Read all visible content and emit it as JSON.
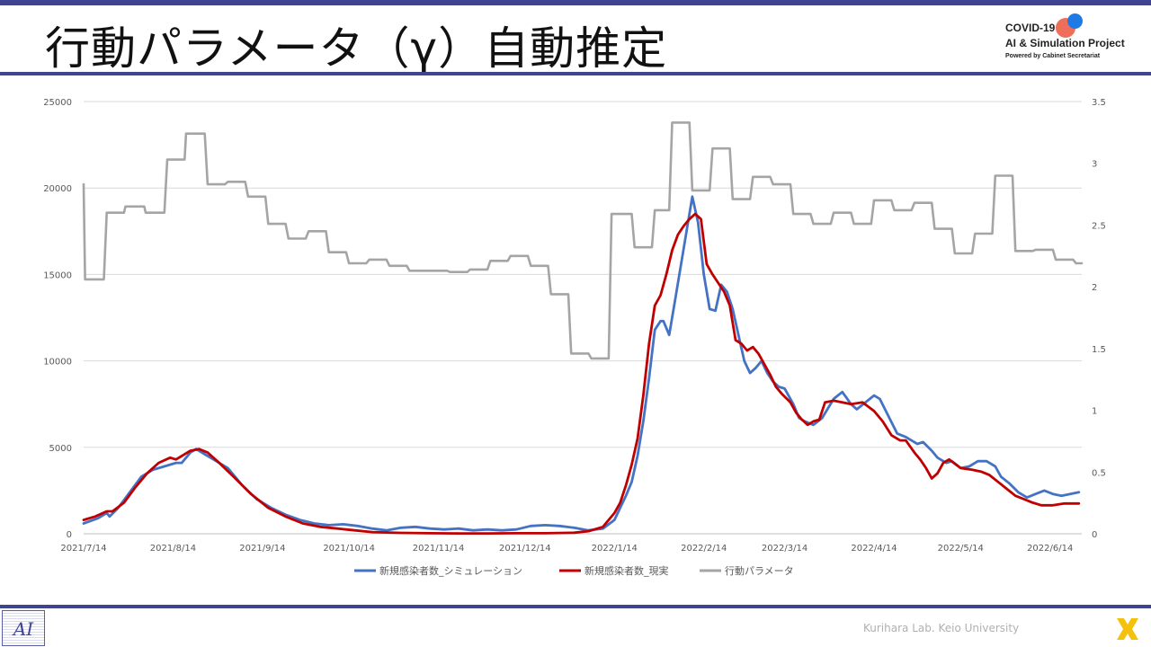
{
  "slide": {
    "title": "行動パラメータ（γ）自動推定",
    "logo_line1": "COVID-19",
    "logo_line2": "AI & Simulation Project",
    "logo_line3": "Powered by Cabinet Secretariat",
    "footer": "Kurihara Lab. Keio University"
  },
  "colors": {
    "accent_bar": "#3f4491",
    "simulation": "#4472c4",
    "actual": "#c00000",
    "parameter": "#a5a5a5"
  },
  "chart_data": {
    "type": "line",
    "x_labels": [
      "2021/7/14",
      "2021/8/14",
      "2021/9/14",
      "2021/10/14",
      "2021/11/14",
      "2021/12/14",
      "2022/1/14",
      "2022/2/14",
      "2022/3/14",
      "2022/4/14",
      "2022/5/14",
      "2022/6/14"
    ],
    "x_label_days": [
      0,
      31,
      62,
      92,
      123,
      153,
      184,
      215,
      243,
      274,
      304,
      335
    ],
    "x_range_days": [
      0,
      346
    ],
    "y_left": {
      "min": 0,
      "max": 25000,
      "ticks": [
        "0",
        "5000",
        "10000",
        "15000",
        "20000",
        "25000"
      ]
    },
    "y_right": {
      "min": 0,
      "max": 3.5,
      "ticks": [
        "0",
        "0.5",
        "1",
        "1.5",
        "2",
        "2.5",
        "3",
        "3.5"
      ]
    },
    "grid": true,
    "legend_position": "bottom",
    "series": [
      {
        "name": "新規感染者数_シミュレーション",
        "axis": "left",
        "color": "#4472c4",
        "points": [
          [
            0,
            600
          ],
          [
            5,
            900
          ],
          [
            8,
            1200
          ],
          [
            9,
            1000
          ],
          [
            12,
            1500
          ],
          [
            16,
            2400
          ],
          [
            20,
            3300
          ],
          [
            24,
            3700
          ],
          [
            28,
            3900
          ],
          [
            32,
            4100
          ],
          [
            34,
            4100
          ],
          [
            37,
            4700
          ],
          [
            39,
            4900
          ],
          [
            42,
            4600
          ],
          [
            46,
            4200
          ],
          [
            50,
            3800
          ],
          [
            55,
            2800
          ],
          [
            60,
            2000
          ],
          [
            65,
            1500
          ],
          [
            70,
            1100
          ],
          [
            75,
            800
          ],
          [
            80,
            600
          ],
          [
            85,
            500
          ],
          [
            90,
            550
          ],
          [
            95,
            450
          ],
          [
            100,
            300
          ],
          [
            105,
            200
          ],
          [
            110,
            350
          ],
          [
            115,
            400
          ],
          [
            120,
            300
          ],
          [
            125,
            250
          ],
          [
            130,
            300
          ],
          [
            135,
            200
          ],
          [
            140,
            250
          ],
          [
            145,
            200
          ],
          [
            150,
            250
          ],
          [
            155,
            450
          ],
          [
            160,
            500
          ],
          [
            165,
            450
          ],
          [
            170,
            350
          ],
          [
            175,
            200
          ],
          [
            180,
            300
          ],
          [
            184,
            800
          ],
          [
            186,
            1500
          ],
          [
            188,
            2200
          ],
          [
            190,
            3000
          ],
          [
            192,
            4500
          ],
          [
            194,
            6500
          ],
          [
            196,
            9000
          ],
          [
            198,
            11800
          ],
          [
            200,
            12300
          ],
          [
            201,
            12300
          ],
          [
            203,
            11500
          ],
          [
            205,
            13500
          ],
          [
            207,
            15500
          ],
          [
            209,
            17500
          ],
          [
            211,
            19500
          ],
          [
            213,
            18000
          ],
          [
            215,
            15000
          ],
          [
            217,
            13000
          ],
          [
            219,
            12900
          ],
          [
            221,
            14400
          ],
          [
            223,
            14000
          ],
          [
            225,
            13000
          ],
          [
            227,
            11500
          ],
          [
            229,
            10000
          ],
          [
            231,
            9300
          ],
          [
            233,
            9600
          ],
          [
            235,
            10000
          ],
          [
            237,
            9300
          ],
          [
            239,
            8800
          ],
          [
            241,
            8500
          ],
          [
            243,
            8400
          ],
          [
            246,
            7500
          ],
          [
            248,
            6700
          ],
          [
            250,
            6500
          ],
          [
            253,
            6300
          ],
          [
            256,
            6700
          ],
          [
            260,
            7800
          ],
          [
            263,
            8200
          ],
          [
            266,
            7500
          ],
          [
            268,
            7200
          ],
          [
            271,
            7600
          ],
          [
            274,
            8000
          ],
          [
            276,
            7800
          ],
          [
            279,
            6800
          ],
          [
            282,
            5800
          ],
          [
            285,
            5600
          ],
          [
            289,
            5200
          ],
          [
            291,
            5300
          ],
          [
            294,
            4800
          ],
          [
            296,
            4400
          ],
          [
            299,
            4100
          ],
          [
            301,
            4200
          ],
          [
            304,
            3800
          ],
          [
            307,
            3900
          ],
          [
            310,
            4200
          ],
          [
            313,
            4200
          ],
          [
            316,
            3900
          ],
          [
            318,
            3300
          ],
          [
            321,
            2900
          ],
          [
            324,
            2400
          ],
          [
            327,
            2100
          ],
          [
            330,
            2300
          ],
          [
            333,
            2500
          ],
          [
            336,
            2300
          ],
          [
            339,
            2200
          ],
          [
            342,
            2300
          ],
          [
            345,
            2400
          ]
        ]
      },
      {
        "name": "新規感染者数_現実",
        "axis": "left",
        "color": "#c00000",
        "points": [
          [
            0,
            800
          ],
          [
            4,
            1000
          ],
          [
            8,
            1300
          ],
          [
            10,
            1300
          ],
          [
            14,
            1800
          ],
          [
            18,
            2700
          ],
          [
            22,
            3500
          ],
          [
            26,
            4100
          ],
          [
            30,
            4400
          ],
          [
            32,
            4300
          ],
          [
            34,
            4500
          ],
          [
            37,
            4800
          ],
          [
            40,
            4900
          ],
          [
            43,
            4700
          ],
          [
            47,
            4100
          ],
          [
            52,
            3300
          ],
          [
            58,
            2300
          ],
          [
            64,
            1500
          ],
          [
            70,
            1000
          ],
          [
            76,
            600
          ],
          [
            82,
            400
          ],
          [
            88,
            300
          ],
          [
            94,
            200
          ],
          [
            100,
            100
          ],
          [
            110,
            50
          ],
          [
            120,
            30
          ],
          [
            130,
            20
          ],
          [
            140,
            20
          ],
          [
            150,
            30
          ],
          [
            160,
            30
          ],
          [
            170,
            60
          ],
          [
            175,
            150
          ],
          [
            180,
            400
          ],
          [
            184,
            1200
          ],
          [
            186,
            1800
          ],
          [
            188,
            2800
          ],
          [
            190,
            4000
          ],
          [
            192,
            5500
          ],
          [
            194,
            8000
          ],
          [
            196,
            11000
          ],
          [
            198,
            13200
          ],
          [
            200,
            13800
          ],
          [
            202,
            15000
          ],
          [
            204,
            16400
          ],
          [
            206,
            17300
          ],
          [
            208,
            17800
          ],
          [
            210,
            18200
          ],
          [
            212,
            18500
          ],
          [
            214,
            18200
          ],
          [
            216,
            15600
          ],
          [
            218,
            15000
          ],
          [
            220,
            14500
          ],
          [
            222,
            14000
          ],
          [
            224,
            13200
          ],
          [
            226,
            11200
          ],
          [
            228,
            11000
          ],
          [
            230,
            10600
          ],
          [
            232,
            10800
          ],
          [
            234,
            10400
          ],
          [
            236,
            9800
          ],
          [
            238,
            9200
          ],
          [
            240,
            8500
          ],
          [
            242,
            8100
          ],
          [
            245,
            7600
          ],
          [
            247,
            7000
          ],
          [
            249,
            6600
          ],
          [
            251,
            6300
          ],
          [
            253,
            6500
          ],
          [
            255,
            6600
          ],
          [
            257,
            7600
          ],
          [
            260,
            7700
          ],
          [
            263,
            7600
          ],
          [
            266,
            7500
          ],
          [
            270,
            7600
          ],
          [
            274,
            7100
          ],
          [
            277,
            6500
          ],
          [
            280,
            5700
          ],
          [
            283,
            5400
          ],
          [
            285,
            5400
          ],
          [
            288,
            4700
          ],
          [
            290,
            4300
          ],
          [
            292,
            3800
          ],
          [
            294,
            3200
          ],
          [
            296,
            3500
          ],
          [
            298,
            4100
          ],
          [
            300,
            4300
          ],
          [
            304,
            3800
          ],
          [
            308,
            3700
          ],
          [
            311,
            3600
          ],
          [
            314,
            3400
          ],
          [
            317,
            3000
          ],
          [
            320,
            2600
          ],
          [
            323,
            2200
          ],
          [
            326,
            2000
          ],
          [
            329,
            1800
          ],
          [
            332,
            1650
          ],
          [
            336,
            1650
          ],
          [
            340,
            1750
          ],
          [
            345,
            1750
          ]
        ]
      },
      {
        "name": "行動パラメータ",
        "axis": "right",
        "color": "#a5a5a5",
        "points": [
          [
            0,
            2.83
          ],
          [
            0.5,
            2.06
          ],
          [
            7,
            2.06
          ],
          [
            8,
            2.6
          ],
          [
            14,
            2.6
          ],
          [
            14.5,
            2.65
          ],
          [
            21,
            2.65
          ],
          [
            21.5,
            2.6
          ],
          [
            28,
            2.6
          ],
          [
            29,
            3.03
          ],
          [
            35,
            3.03
          ],
          [
            35.5,
            3.24
          ],
          [
            42,
            3.24
          ],
          [
            43,
            2.83
          ],
          [
            49,
            2.83
          ],
          [
            50,
            2.85
          ],
          [
            56,
            2.85
          ],
          [
            57,
            2.73
          ],
          [
            63,
            2.73
          ],
          [
            64,
            2.51
          ],
          [
            70,
            2.51
          ],
          [
            71,
            2.39
          ],
          [
            77,
            2.39
          ],
          [
            78,
            2.45
          ],
          [
            84,
            2.45
          ],
          [
            85,
            2.28
          ],
          [
            91,
            2.28
          ],
          [
            92,
            2.19
          ],
          [
            98,
            2.19
          ],
          [
            99,
            2.22
          ],
          [
            105,
            2.22
          ],
          [
            106,
            2.17
          ],
          [
            112,
            2.17
          ],
          [
            113,
            2.13
          ],
          [
            126,
            2.13
          ],
          [
            127,
            2.12
          ],
          [
            133,
            2.12
          ],
          [
            134,
            2.14
          ],
          [
            140,
            2.14
          ],
          [
            141,
            2.21
          ],
          [
            147,
            2.21
          ],
          [
            148,
            2.25
          ],
          [
            154,
            2.25
          ],
          [
            155,
            2.17
          ],
          [
            161,
            2.17
          ],
          [
            162,
            1.94
          ],
          [
            168,
            1.94
          ],
          [
            169,
            1.46
          ],
          [
            175,
            1.46
          ],
          [
            176,
            1.42
          ],
          [
            182,
            1.42
          ],
          [
            183,
            2.59
          ],
          [
            190,
            2.59
          ],
          [
            191,
            2.32
          ],
          [
            197,
            2.32
          ],
          [
            198,
            2.62
          ],
          [
            203,
            2.62
          ],
          [
            204,
            3.33
          ],
          [
            210,
            3.33
          ],
          [
            211,
            2.78
          ],
          [
            217,
            2.78
          ],
          [
            218,
            3.12
          ],
          [
            224,
            3.12
          ],
          [
            225,
            2.71
          ],
          [
            231,
            2.71
          ],
          [
            232,
            2.89
          ],
          [
            238,
            2.89
          ],
          [
            239,
            2.83
          ],
          [
            245,
            2.83
          ],
          [
            246,
            2.59
          ],
          [
            252,
            2.59
          ],
          [
            253,
            2.51
          ],
          [
            259,
            2.51
          ],
          [
            260,
            2.6
          ],
          [
            266,
            2.6
          ],
          [
            267,
            2.51
          ],
          [
            273,
            2.51
          ],
          [
            274,
            2.7
          ],
          [
            280,
            2.7
          ],
          [
            281,
            2.62
          ],
          [
            287,
            2.62
          ],
          [
            288,
            2.68
          ],
          [
            294,
            2.68
          ],
          [
            295,
            2.47
          ],
          [
            301,
            2.47
          ],
          [
            302,
            2.27
          ],
          [
            308,
            2.27
          ],
          [
            309,
            2.43
          ],
          [
            315,
            2.43
          ],
          [
            316,
            2.9
          ],
          [
            322,
            2.9
          ],
          [
            323,
            2.29
          ],
          [
            329,
            2.29
          ],
          [
            330,
            2.3
          ],
          [
            336,
            2.3
          ],
          [
            337,
            2.22
          ],
          [
            343,
            2.22
          ],
          [
            344,
            2.19
          ],
          [
            346,
            2.19
          ]
        ]
      }
    ]
  }
}
